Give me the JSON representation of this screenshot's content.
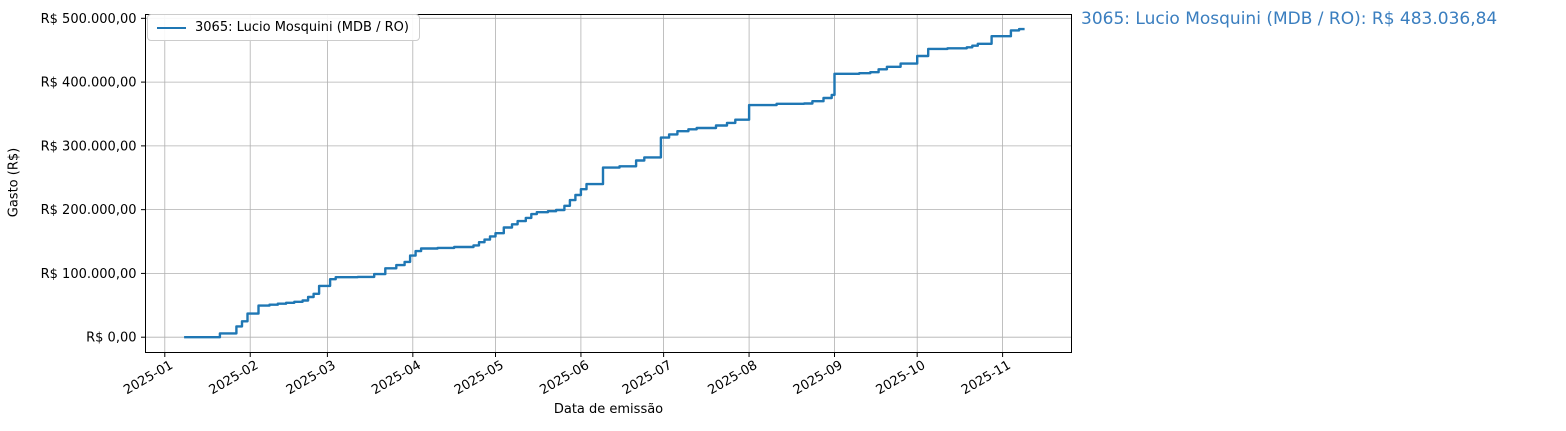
{
  "legend": {
    "label": "3065: Lucio Mosquini (MDB / RO)"
  },
  "annotation": {
    "text": "3065: Lucio Mosquini (MDB / RO): R$ 483.036,84",
    "color": "#3a7ebf"
  },
  "colors": {
    "line": "#1f77b4",
    "grid": "#b0b0b0",
    "spine": "#000000",
    "tick_text": "#000000",
    "background": "#ffffff"
  },
  "chart_data": {
    "type": "line",
    "step_mode": "post",
    "title": "",
    "xlabel": "Data de emissão",
    "ylabel": "Gasto (R$)",
    "grid": true,
    "legend_position": "upper left",
    "xlim": [
      "2024-12-25",
      "2025-11-26"
    ],
    "ylim": [
      -24000,
      506000
    ],
    "x_ticks": [
      {
        "label": "2025-01",
        "date": "2025-01-01"
      },
      {
        "label": "2025-02",
        "date": "2025-02-01"
      },
      {
        "label": "2025-03",
        "date": "2025-03-01"
      },
      {
        "label": "2025-04",
        "date": "2025-04-01"
      },
      {
        "label": "2025-05",
        "date": "2025-05-01"
      },
      {
        "label": "2025-06",
        "date": "2025-06-01"
      },
      {
        "label": "2025-07",
        "date": "2025-07-01"
      },
      {
        "label": "2025-08",
        "date": "2025-08-01"
      },
      {
        "label": "2025-09",
        "date": "2025-09-01"
      },
      {
        "label": "2025-10",
        "date": "2025-10-01"
      },
      {
        "label": "2025-11",
        "date": "2025-11-01"
      }
    ],
    "y_ticks": [
      {
        "label": "R$ 0,00",
        "value": 0
      },
      {
        "label": "R$ 100.000,00",
        "value": 100000
      },
      {
        "label": "R$ 200.000,00",
        "value": 200000
      },
      {
        "label": "R$ 300.000,00",
        "value": 300000
      },
      {
        "label": "R$ 400.000,00",
        "value": 400000
      },
      {
        "label": "R$ 500.000,00",
        "value": 500000
      }
    ],
    "series": [
      {
        "name": "3065: Lucio Mosquini (MDB / RO)",
        "color": "#1f77b4",
        "final_value": 483036.84,
        "points": [
          [
            "2025-01-08",
            0
          ],
          [
            "2025-01-21",
            6000
          ],
          [
            "2025-01-27",
            17000
          ],
          [
            "2025-01-29",
            25000
          ],
          [
            "2025-01-31",
            37000
          ],
          [
            "2025-02-04",
            49500
          ],
          [
            "2025-02-08",
            51000
          ],
          [
            "2025-02-11",
            52500
          ],
          [
            "2025-02-14",
            54000
          ],
          [
            "2025-02-17",
            55500
          ],
          [
            "2025-02-20",
            57500
          ],
          [
            "2025-02-22",
            63000
          ],
          [
            "2025-02-24",
            68000
          ],
          [
            "2025-02-26",
            80500
          ],
          [
            "2025-03-02",
            91000
          ],
          [
            "2025-03-04",
            94000
          ],
          [
            "2025-03-12",
            94500
          ],
          [
            "2025-03-18",
            99000
          ],
          [
            "2025-03-22",
            108000
          ],
          [
            "2025-03-26",
            113000
          ],
          [
            "2025-03-29",
            118000
          ],
          [
            "2025-03-31",
            128000
          ],
          [
            "2025-04-02",
            135000
          ],
          [
            "2025-04-04",
            139000
          ],
          [
            "2025-04-10",
            140000
          ],
          [
            "2025-04-16",
            141500
          ],
          [
            "2025-04-23",
            144000
          ],
          [
            "2025-04-25",
            149000
          ],
          [
            "2025-04-27",
            153000
          ],
          [
            "2025-04-29",
            158000
          ],
          [
            "2025-05-01",
            163000
          ],
          [
            "2025-05-04",
            172000
          ],
          [
            "2025-05-07",
            177000
          ],
          [
            "2025-05-09",
            182000
          ],
          [
            "2025-05-12",
            187000
          ],
          [
            "2025-05-14",
            193000
          ],
          [
            "2025-05-16",
            196000
          ],
          [
            "2025-05-20",
            197500
          ],
          [
            "2025-05-23",
            199500
          ],
          [
            "2025-05-26",
            206000
          ],
          [
            "2025-05-28",
            215000
          ],
          [
            "2025-05-30",
            223000
          ],
          [
            "2025-06-01",
            232000
          ],
          [
            "2025-06-03",
            240000
          ],
          [
            "2025-06-09",
            266000
          ],
          [
            "2025-06-15",
            268000
          ],
          [
            "2025-06-21",
            277000
          ],
          [
            "2025-06-24",
            282000
          ],
          [
            "2025-06-30",
            313000
          ],
          [
            "2025-07-03",
            318000
          ],
          [
            "2025-07-06",
            323000
          ],
          [
            "2025-07-10",
            326000
          ],
          [
            "2025-07-13",
            328000
          ],
          [
            "2025-07-20",
            332000
          ],
          [
            "2025-07-24",
            336000
          ],
          [
            "2025-07-27",
            341000
          ],
          [
            "2025-08-01",
            364000
          ],
          [
            "2025-08-11",
            366000
          ],
          [
            "2025-08-21",
            366500
          ],
          [
            "2025-08-24",
            370000
          ],
          [
            "2025-08-28",
            375000
          ],
          [
            "2025-08-31",
            380000
          ],
          [
            "2025-09-01",
            413000
          ],
          [
            "2025-09-10",
            414000
          ],
          [
            "2025-09-14",
            415500
          ],
          [
            "2025-09-17",
            420000
          ],
          [
            "2025-09-20",
            424000
          ],
          [
            "2025-09-25",
            429000
          ],
          [
            "2025-10-01",
            441000
          ],
          [
            "2025-10-05",
            452000
          ],
          [
            "2025-10-12",
            453000
          ],
          [
            "2025-10-19",
            454500
          ],
          [
            "2025-10-21",
            457000
          ],
          [
            "2025-10-23",
            460000
          ],
          [
            "2025-10-28",
            472000
          ],
          [
            "2025-11-04",
            481000
          ],
          [
            "2025-11-07",
            483036.84
          ],
          [
            "2025-11-09",
            483036.84
          ]
        ]
      }
    ]
  }
}
